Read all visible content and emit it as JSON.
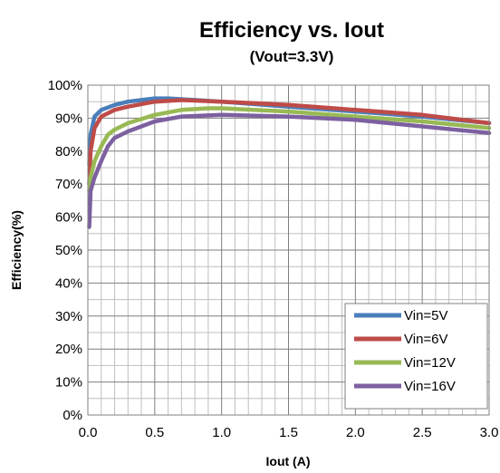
{
  "chart_data": {
    "type": "line",
    "title": "Efficiency vs. Iout",
    "subtitle": "(Vout=3.3V)",
    "xlabel": "Iout (A)",
    "ylabel": "Efficiency(%)",
    "xlim": [
      0,
      3.0
    ],
    "ylim": [
      0,
      100
    ],
    "x_ticks": [
      "0.0",
      "0.5",
      "1.0",
      "1.5",
      "2.0",
      "2.5",
      "3.0"
    ],
    "y_ticks": [
      "0%",
      "10%",
      "20%",
      "30%",
      "40%",
      "50%",
      "60%",
      "70%",
      "80%",
      "90%",
      "100%"
    ],
    "grid": true,
    "legend_position": "bottom-right",
    "series": [
      {
        "name": "Vin=5V",
        "color": "#4a7ebb",
        "x": [
          0.01,
          0.02,
          0.05,
          0.1,
          0.2,
          0.3,
          0.5,
          0.6,
          0.8,
          1.0,
          1.5,
          2.0,
          2.5,
          3.0
        ],
        "y": [
          76,
          85,
          90.5,
          92.5,
          94,
          95,
          96,
          96,
          95.5,
          95,
          93.5,
          92,
          90.5,
          88.5
        ]
      },
      {
        "name": "Vin=6V",
        "color": "#be4b48",
        "x": [
          0.01,
          0.02,
          0.05,
          0.1,
          0.2,
          0.3,
          0.5,
          0.7,
          1.0,
          1.5,
          2.0,
          2.5,
          3.0
        ],
        "y": [
          70,
          80,
          87,
          90.5,
          92.5,
          93.5,
          95,
          95.5,
          95,
          94,
          92.5,
          91,
          88.5
        ]
      },
      {
        "name": "Vin=12V",
        "color": "#98b954",
        "x": [
          0.01,
          0.02,
          0.05,
          0.1,
          0.15,
          0.2,
          0.3,
          0.5,
          0.7,
          0.9,
          1.0,
          1.5,
          2.0,
          2.5,
          3.0
        ],
        "y": [
          68,
          72,
          77,
          81.5,
          85,
          86.5,
          88.5,
          91,
          92.5,
          93,
          93,
          92,
          90.5,
          89,
          87
        ]
      },
      {
        "name": "Vin=16V",
        "color": "#7d60a0",
        "x": [
          0.01,
          0.02,
          0.05,
          0.1,
          0.15,
          0.2,
          0.3,
          0.5,
          0.7,
          1.0,
          1.5,
          2.0,
          2.5,
          3.0
        ],
        "y": [
          57,
          68,
          72,
          77,
          81.5,
          84,
          86,
          89,
          90.5,
          91,
          90.5,
          89.5,
          87.5,
          85.5
        ]
      }
    ]
  }
}
